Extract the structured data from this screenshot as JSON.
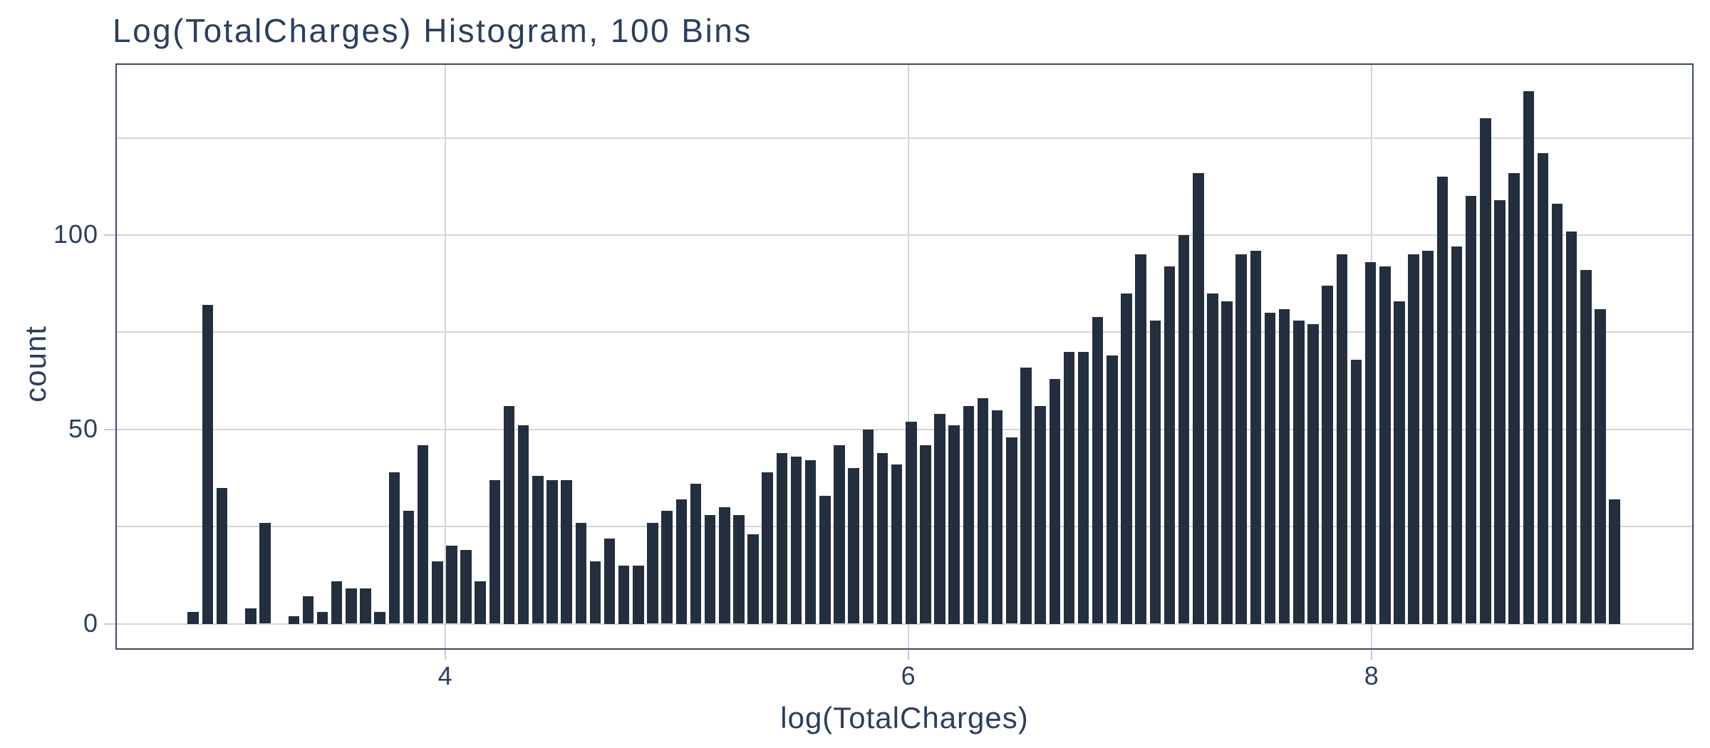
{
  "title": "Log(TotalCharges) Histogram, 100 Bins",
  "colors": {
    "bar": "#232f3e",
    "text": "#2a3f5f",
    "grid": "#d5d5d5",
    "tick": "#c9c9c9",
    "plot_border": "#3c4a63",
    "background": "#ffffff"
  },
  "chart_data": {
    "type": "bar",
    "subtype": "histogram",
    "title": "Log(TotalCharges) Histogram, 100 Bins",
    "xlabel": "log(TotalCharges)",
    "ylabel": "count",
    "n_bins": 100,
    "bin_center_start": 2.911,
    "bin_step": 0.062,
    "counts": [
      3,
      82,
      35,
      0,
      4,
      26,
      0,
      2,
      7,
      3,
      11,
      9,
      9,
      3,
      39,
      29,
      46,
      16,
      20,
      19,
      11,
      37,
      56,
      51,
      38,
      37,
      37,
      26,
      16,
      22,
      15,
      15,
      26,
      29,
      32,
      36,
      28,
      30,
      28,
      23,
      39,
      44,
      43,
      42,
      33,
      46,
      40,
      50,
      44,
      41,
      52,
      46,
      54,
      51,
      56,
      58,
      55,
      48,
      66,
      56,
      63,
      70,
      70,
      79,
      69,
      85,
      95,
      78,
      92,
      100,
      116,
      85,
      83,
      95,
      96,
      80,
      81,
      78,
      77,
      87,
      95,
      68,
      93,
      92,
      83,
      95,
      96,
      115,
      97,
      110,
      130,
      109,
      116,
      137,
      121,
      108,
      101,
      91,
      81,
      32
    ],
    "x_ticks": [
      4,
      6,
      8
    ],
    "y_ticks": [
      0,
      50,
      100
    ],
    "y_grid_step": 25,
    "xlim": [
      2.575,
      9.39
    ],
    "ylim": [
      -6.69,
      144.19
    ],
    "grid": true,
    "legend": "none",
    "bar_width_fraction": 0.77
  }
}
